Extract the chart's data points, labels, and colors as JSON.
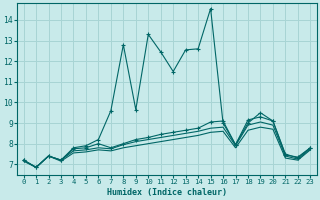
{
  "xlabel": "Humidex (Indice chaleur)",
  "bg_color": "#c8eaea",
  "grid_color": "#a8d4d4",
  "line_color": "#006666",
  "xlim": [
    -0.5,
    23.5
  ],
  "ylim": [
    6.5,
    14.8
  ],
  "xticks": [
    0,
    1,
    2,
    3,
    4,
    5,
    6,
    7,
    8,
    9,
    10,
    11,
    12,
    13,
    14,
    15,
    16,
    17,
    18,
    19,
    20,
    21,
    22,
    23
  ],
  "yticks": [
    7,
    8,
    9,
    10,
    11,
    12,
    13,
    14
  ],
  "series": [
    [
      7.2,
      6.85,
      7.4,
      7.2,
      7.8,
      7.9,
      8.2,
      9.6,
      12.8,
      9.65,
      13.3,
      12.45,
      11.5,
      12.55,
      12.6,
      14.55,
      9.0,
      7.95,
      9.0,
      9.5,
      9.1,
      7.5,
      7.3,
      7.8
    ],
    [
      7.2,
      6.85,
      7.4,
      7.2,
      7.75,
      7.8,
      8.0,
      7.8,
      8.0,
      8.2,
      8.3,
      8.45,
      8.55,
      8.65,
      8.75,
      9.05,
      9.1,
      7.95,
      9.15,
      9.3,
      9.1,
      7.45,
      7.35,
      7.8
    ],
    [
      7.2,
      6.85,
      7.4,
      7.2,
      7.65,
      7.7,
      7.8,
      7.75,
      7.95,
      8.1,
      8.2,
      8.3,
      8.4,
      8.5,
      8.6,
      8.75,
      8.8,
      7.9,
      8.9,
      9.05,
      8.9,
      7.4,
      7.25,
      7.75
    ],
    [
      7.15,
      6.85,
      7.4,
      7.15,
      7.55,
      7.6,
      7.7,
      7.65,
      7.8,
      7.9,
      8.0,
      8.1,
      8.2,
      8.3,
      8.4,
      8.55,
      8.6,
      7.8,
      8.65,
      8.8,
      8.7,
      7.3,
      7.2,
      7.7
    ]
  ]
}
